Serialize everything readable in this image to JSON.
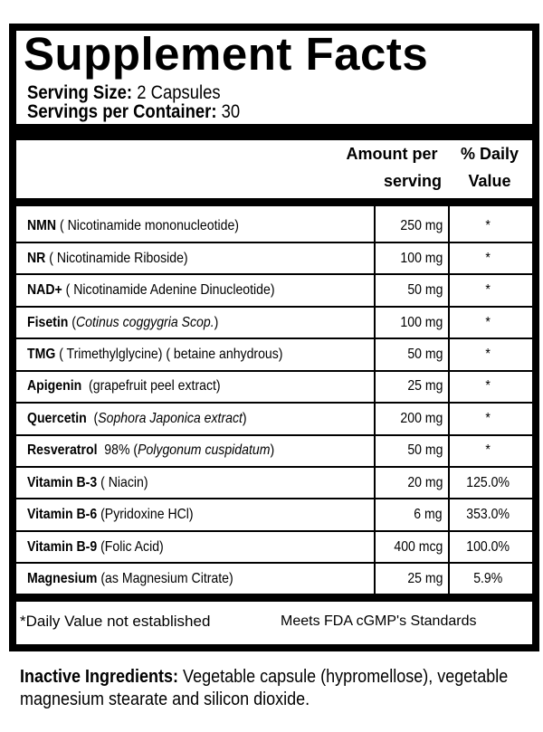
{
  "title": "Supplement Facts",
  "serving_size": {
    "label": "Serving Size:",
    "value": "2 Capsules"
  },
  "servings_per_container": {
    "label": "Servings per Container:",
    "value": "30"
  },
  "columns": {
    "amount_line1": "Amount per",
    "amount_line2": "serving",
    "dv_line1": "% Daily",
    "dv_line2": "Value"
  },
  "rows": [
    {
      "name": "NMN",
      "pre": " ( Nicotinamide mononucleotide)",
      "italic": "",
      "post": "",
      "amount": "250 mg",
      "dv": "*"
    },
    {
      "name": "NR",
      "pre": " ( Nicotinamide Riboside)",
      "italic": "",
      "post": "",
      "amount": "100 mg",
      "dv": "*"
    },
    {
      "name": "NAD+",
      "pre": " ( Nicotinamide Adenine Dinucleotide)",
      "italic": "",
      "post": "",
      "amount": "50 mg",
      "dv": "*"
    },
    {
      "name": "Fisetin",
      "pre": " (",
      "italic": "Cotinus coggygria Scop.",
      "post": ")",
      "amount": "100 mg",
      "dv": "*"
    },
    {
      "name": "TMG",
      "pre": " ( Trimethylglycine) ( betaine anhydrous)",
      "italic": "",
      "post": "",
      "amount": "50 mg",
      "dv": "*"
    },
    {
      "name": "Apigenin",
      "pre": "  (grapefruit peel extract)",
      "italic": "",
      "post": "",
      "amount": "25 mg",
      "dv": "*"
    },
    {
      "name": "Quercetin",
      "pre": "  (",
      "italic": "Sophora Japonica extract",
      "post": ")",
      "amount": "200 mg",
      "dv": "*"
    },
    {
      "name": "Resveratrol",
      "pre": "  98% (",
      "italic": "Polygonum cuspidatum",
      "post": ")",
      "amount": "50 mg",
      "dv": "*"
    },
    {
      "name": "Vitamin B-3",
      "pre": " ( Niacin)",
      "italic": "",
      "post": "",
      "amount": "20 mg",
      "dv": "125.0%"
    },
    {
      "name": "Vitamin B-6",
      "pre": " (Pyridoxine HCl)",
      "italic": "",
      "post": "",
      "amount": "6 mg",
      "dv": "353.0%"
    },
    {
      "name": "Vitamin B-9",
      "pre": " (Folic Acid)",
      "italic": "",
      "post": "",
      "amount": "400 mcg",
      "dv": "100.0%"
    },
    {
      "name": "Magnesium",
      "pre": " (as Magnesium Citrate)",
      "italic": "",
      "post": "",
      "amount": "25 mg",
      "dv": "5.9%"
    }
  ],
  "footer": {
    "note": "*Daily Value not established",
    "standards": "Meets FDA cGMP's Standards"
  },
  "inactive": {
    "label": "Inactive Ingredients:",
    "text": " Vegetable capsule (hypromellose), vegetable magnesium stearate and silicon dioxide."
  }
}
